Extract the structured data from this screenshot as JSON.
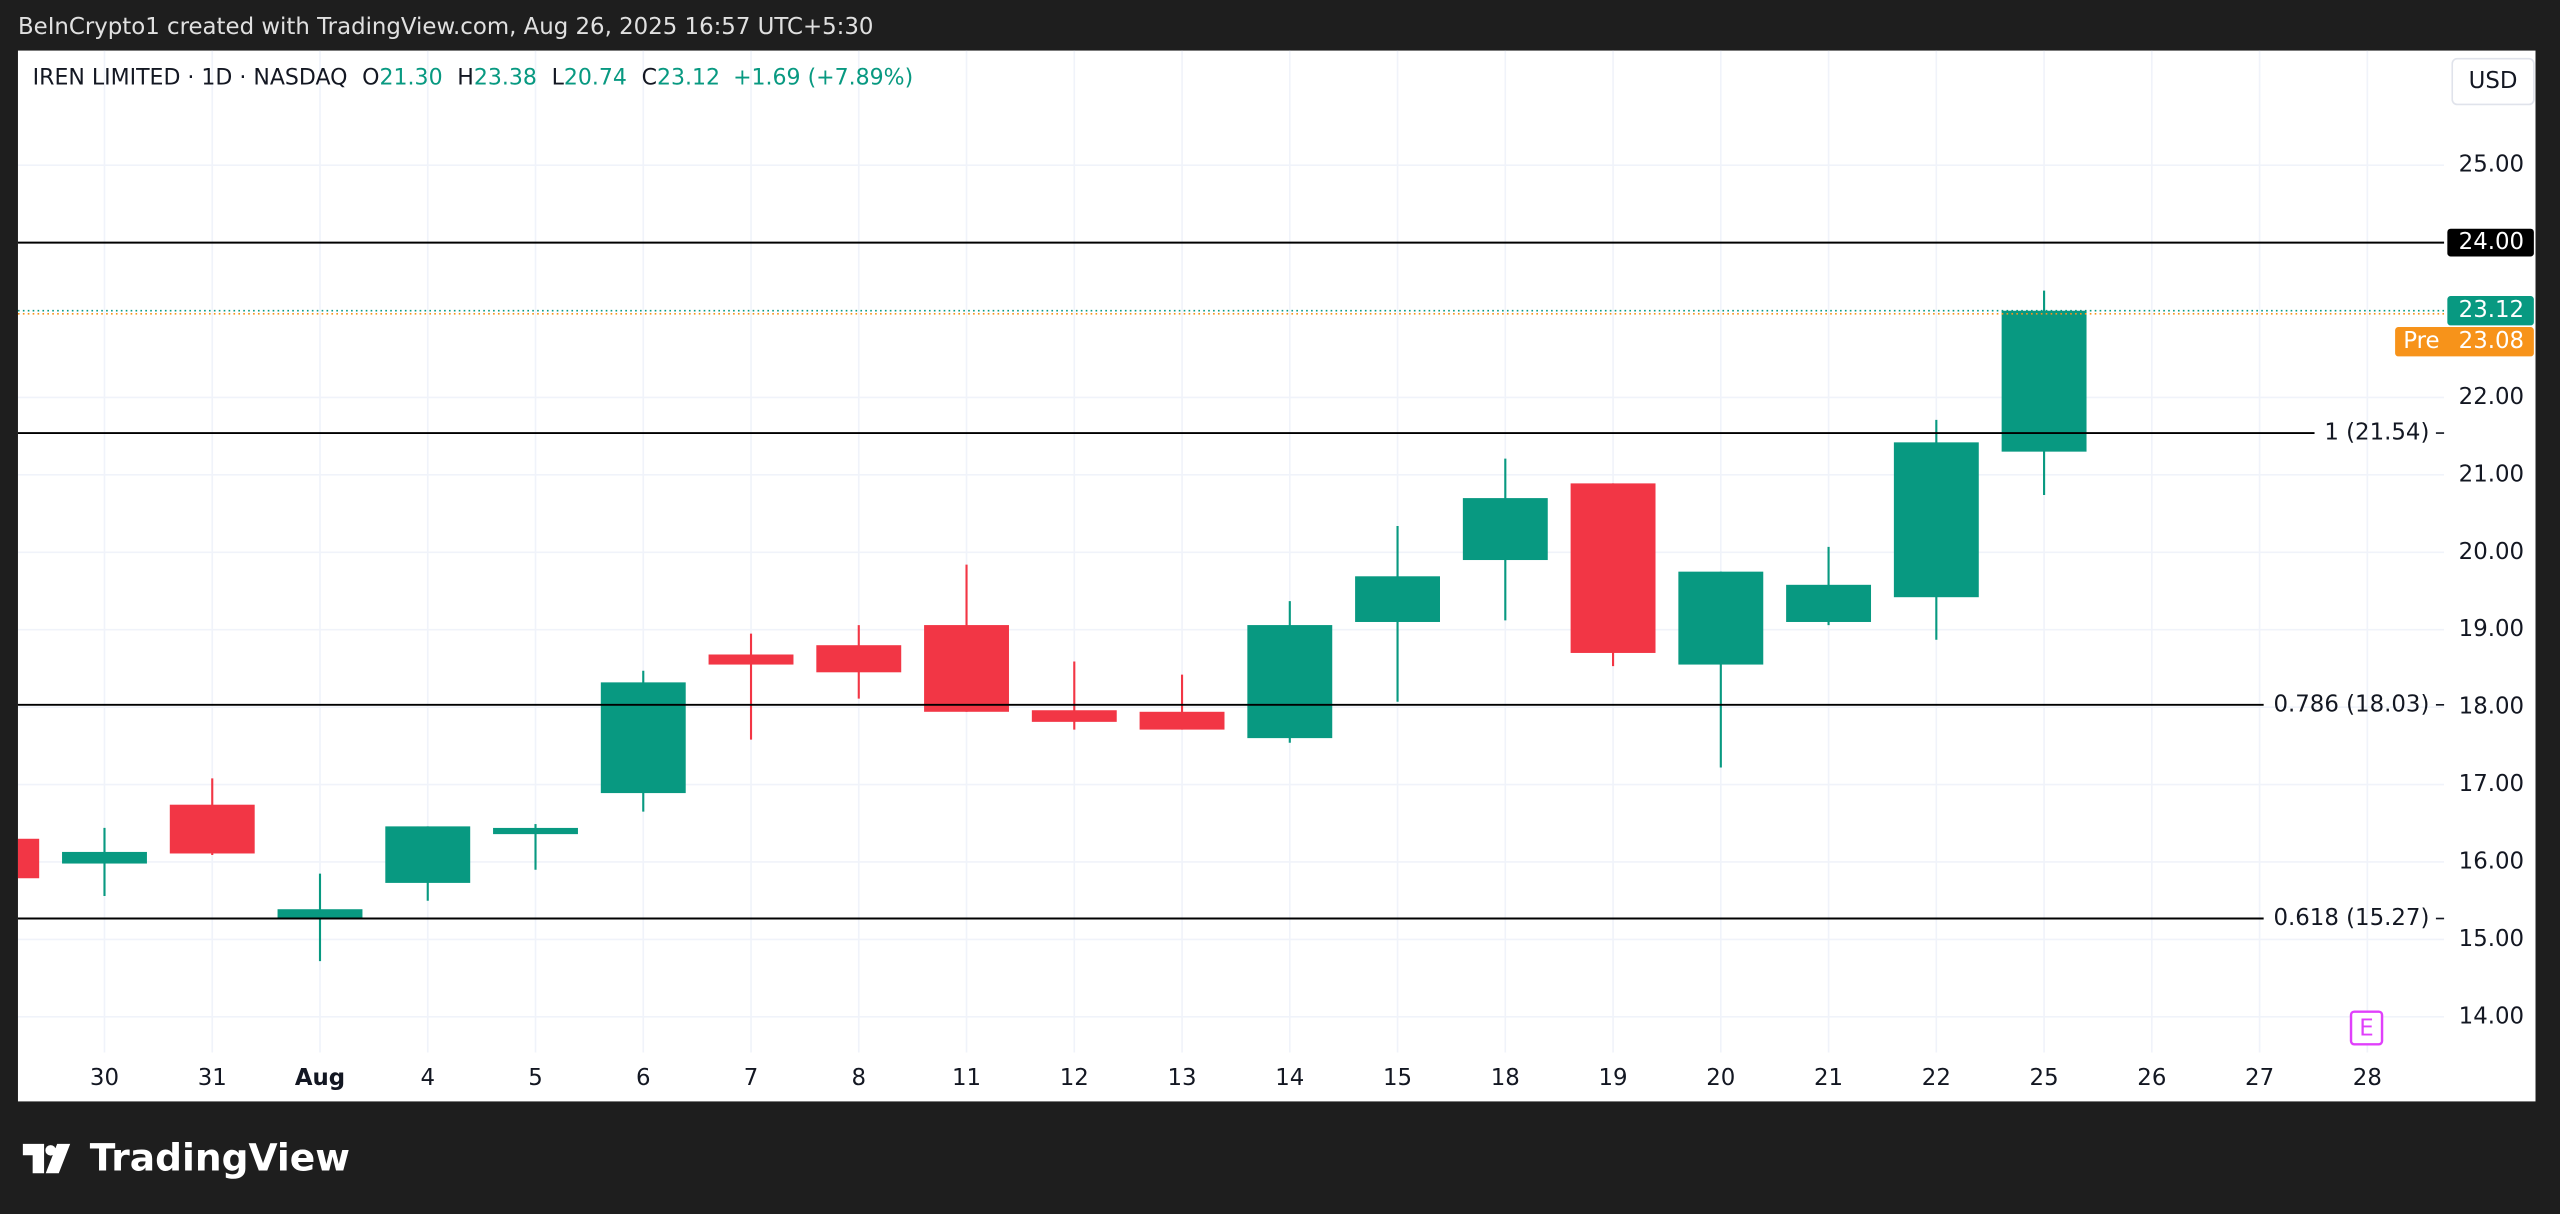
{
  "header": {
    "text": "BeInCrypto1 created with TradingView.com, Aug 26, 2025 16:57 UTC+5:30"
  },
  "footer": {
    "logo": "TradingView"
  },
  "chart_data": {
    "type": "candlestick",
    "legend": {
      "symbol": "IREN LIMITED · 1D · NASDAQ",
      "items": [
        {
          "key": "O",
          "value": "21.30"
        },
        {
          "key": "H",
          "value": "23.38"
        },
        {
          "key": "L",
          "value": "20.74"
        },
        {
          "key": "C",
          "value": "23.12"
        }
      ],
      "change": "+1.69 (+7.89%)"
    },
    "currency": "USD",
    "categories": [
      null,
      "30",
      "31",
      "Aug",
      "4",
      "5",
      "6",
      "7",
      "8",
      "11",
      "12",
      "13",
      "14",
      "15",
      "18",
      "19",
      "20",
      "21",
      "22",
      "25",
      "26",
      "27",
      "28"
    ],
    "open": [
      16.3,
      15.98,
      16.74,
      15.28,
      15.73,
      16.36,
      16.89,
      18.68,
      18.8,
      19.06,
      17.96,
      17.94,
      17.6,
      19.1,
      19.9,
      20.89,
      18.55,
      19.1,
      19.42,
      21.3,
      null,
      null,
      null
    ],
    "high": [
      16.3,
      16.44,
      17.08,
      15.85,
      16.46,
      16.49,
      18.47,
      18.95,
      19.06,
      19.84,
      18.59,
      18.42,
      19.37,
      20.34,
      21.21,
      20.89,
      19.75,
      20.07,
      21.71,
      23.38,
      null,
      null,
      null
    ],
    "low": [
      15.75,
      15.56,
      16.09,
      14.72,
      15.5,
      15.9,
      16.65,
      17.58,
      18.11,
      17.94,
      17.71,
      17.71,
      17.54,
      18.07,
      19.12,
      18.53,
      17.22,
      19.06,
      18.87,
      20.74,
      null,
      null,
      null
    ],
    "close": [
      15.79,
      16.13,
      16.11,
      15.39,
      16.46,
      16.44,
      18.32,
      18.55,
      18.45,
      17.94,
      17.81,
      17.71,
      19.06,
      19.69,
      20.7,
      18.7,
      19.75,
      19.58,
      21.42,
      23.12,
      null,
      null,
      null
    ],
    "up_color": "#089981",
    "down_color": "#f23645",
    "ylim": [
      13.54,
      26.48
    ],
    "yticks": [
      {
        "value": 14,
        "label": "14.00"
      },
      {
        "value": 15,
        "label": "15.00"
      },
      {
        "value": 16,
        "label": "16.00"
      },
      {
        "value": 17,
        "label": "17.00"
      },
      {
        "value": 18,
        "label": "18.00"
      },
      {
        "value": 19,
        "label": "19.00"
      },
      {
        "value": 20,
        "label": "20.00"
      },
      {
        "value": 21,
        "label": "21.00"
      },
      {
        "value": 22,
        "label": "22.00"
      },
      {
        "value": 25,
        "label": "25.00"
      }
    ],
    "grid": true,
    "horizontal_line": {
      "value": 24,
      "label": "24.00"
    },
    "levels": [
      {
        "value": 21.54,
        "label": "1 (21.54)"
      },
      {
        "value": 18.03,
        "label": "0.786 (18.03)"
      },
      {
        "value": 15.27,
        "label": "0.618 (15.27)"
      }
    ],
    "last_price": {
      "value": 23.12,
      "label": "23.12",
      "color": "#089981"
    },
    "pre_price": {
      "tag": "Pre",
      "value": 23.08,
      "label": "23.08",
      "color": "#f7931a"
    },
    "earnings_marker": "E"
  }
}
